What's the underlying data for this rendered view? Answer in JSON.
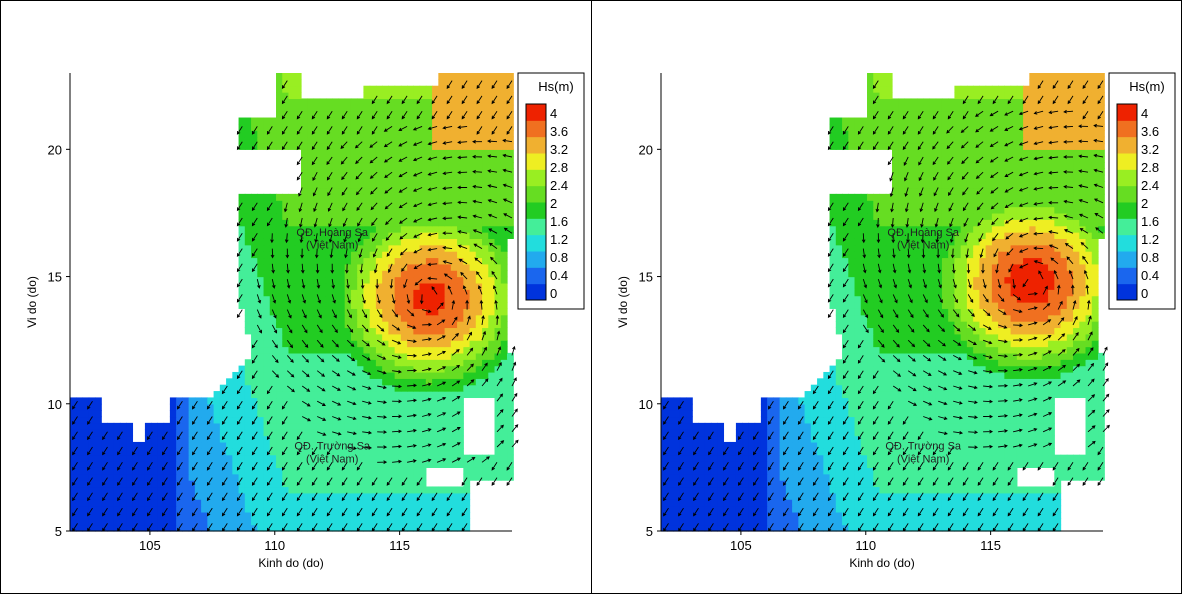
{
  "colors": {
    "scale": [
      "#0033dd",
      "#1a66ee",
      "#22aaee",
      "#22dddd",
      "#44ee99",
      "#22cc22",
      "#66dd22",
      "#99ee22",
      "#eeee22",
      "#f0b030",
      "#f07020",
      "#ee2200"
    ]
  },
  "chart_data": [
    {
      "type": "heatmap",
      "title": "",
      "xlabel": "Kinh do (do)",
      "ylabel": "Vi do (do)",
      "xlim": [
        101.8,
        119.5
      ],
      "ylim": [
        5,
        23
      ],
      "xticks": [
        "105",
        "110",
        "115"
      ],
      "yticks": [
        "5",
        "10",
        "15",
        "20"
      ],
      "legend": {
        "title": "Hs(m)",
        "position": "right",
        "levels": [
          "4",
          "3.6",
          "3.2",
          "2.8",
          "2.4",
          "2",
          "1.6",
          "1.2",
          "0.8",
          "0.4",
          "0"
        ]
      },
      "annotations": [
        {
          "text": "QĐ. Hoàng Sa",
          "lon": 112.3,
          "lat": 16.6
        },
        {
          "text": "(Việt Nam)",
          "lon": 112.3,
          "lat": 16.1
        },
        {
          "text": "QĐ. Trường Sa",
          "lon": 112.3,
          "lat": 8.2
        },
        {
          "text": "(Việt Nam)",
          "lon": 112.3,
          "lat": 7.7
        }
      ],
      "storm_center": {
        "lon": 116.2,
        "lat": 14.2
      },
      "max_hs": 4.5
    },
    {
      "type": "heatmap",
      "title": "",
      "xlabel": "Kinh do (do)",
      "ylabel": "Vi do (do)",
      "xlim": [
        101.8,
        119.5
      ],
      "ylim": [
        5,
        23
      ],
      "xticks": [
        "105",
        "110",
        "115"
      ],
      "yticks": [
        "5",
        "10",
        "15",
        "20"
      ],
      "legend": {
        "title": "Hs(m)",
        "position": "right",
        "levels": [
          "4",
          "3.6",
          "3.2",
          "2.8",
          "2.4",
          "2",
          "1.6",
          "1.2",
          "0.8",
          "0.4",
          "0"
        ]
      },
      "annotations": [
        {
          "text": "QĐ. Hoàng Sa",
          "lon": 112.3,
          "lat": 16.6
        },
        {
          "text": "(Việt Nam)",
          "lon": 112.3,
          "lat": 16.1
        },
        {
          "text": "QĐ. Trường Sa",
          "lon": 112.3,
          "lat": 8.2
        },
        {
          "text": "(Việt Nam)",
          "lon": 112.3,
          "lat": 7.7
        }
      ],
      "storm_center": {
        "lon": 116.6,
        "lat": 14.8
      },
      "max_hs": 4.6
    }
  ]
}
